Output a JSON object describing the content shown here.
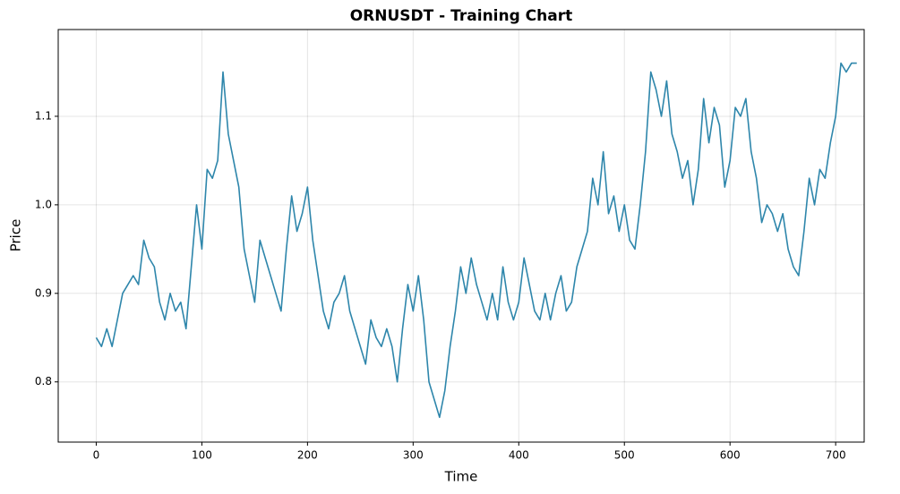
{
  "chart_data": {
    "type": "line",
    "title": "ORNUSDT - Training Chart",
    "x_label": "Time",
    "y_label": "Price",
    "x": [
      0,
      5,
      10,
      15,
      20,
      25,
      30,
      35,
      40,
      45,
      50,
      55,
      60,
      65,
      70,
      75,
      80,
      85,
      90,
      95,
      100,
      105,
      110,
      115,
      120,
      125,
      130,
      135,
      140,
      145,
      150,
      155,
      160,
      165,
      170,
      175,
      180,
      185,
      190,
      195,
      200,
      205,
      210,
      215,
      220,
      225,
      230,
      235,
      240,
      245,
      250,
      255,
      260,
      265,
      270,
      275,
      280,
      285,
      290,
      295,
      300,
      305,
      310,
      315,
      320,
      325,
      330,
      335,
      340,
      345,
      350,
      355,
      360,
      365,
      370,
      375,
      380,
      385,
      390,
      395,
      400,
      405,
      410,
      415,
      420,
      425,
      430,
      435,
      440,
      445,
      450,
      455,
      460,
      465,
      470,
      475,
      480,
      485,
      490,
      495,
      500,
      505,
      510,
      515,
      520,
      525,
      530,
      535,
      540,
      545,
      550,
      555,
      560,
      565,
      570,
      575,
      580,
      585,
      590,
      595,
      600,
      605,
      610,
      615,
      620,
      625,
      630,
      635,
      640,
      645,
      650,
      655,
      660,
      665,
      670,
      675,
      680,
      685,
      690,
      695,
      700,
      705,
      710,
      715,
      720
    ],
    "series": [
      {
        "name": "Price",
        "color": "#2e86ab",
        "values": [
          0.85,
          0.84,
          0.86,
          0.84,
          0.87,
          0.9,
          0.91,
          0.92,
          0.91,
          0.96,
          0.94,
          0.93,
          0.89,
          0.87,
          0.9,
          0.88,
          0.89,
          0.86,
          0.93,
          1.0,
          0.95,
          1.04,
          1.03,
          1.05,
          1.15,
          1.08,
          1.05,
          1.02,
          0.95,
          0.92,
          0.89,
          0.96,
          0.94,
          0.92,
          0.9,
          0.88,
          0.95,
          1.01,
          0.97,
          0.99,
          1.02,
          0.96,
          0.92,
          0.88,
          0.86,
          0.89,
          0.9,
          0.92,
          0.88,
          0.86,
          0.84,
          0.82,
          0.87,
          0.85,
          0.84,
          0.86,
          0.84,
          0.8,
          0.86,
          0.91,
          0.88,
          0.92,
          0.87,
          0.8,
          0.78,
          0.76,
          0.79,
          0.84,
          0.88,
          0.93,
          0.9,
          0.94,
          0.91,
          0.89,
          0.87,
          0.9,
          0.87,
          0.93,
          0.89,
          0.87,
          0.89,
          0.94,
          0.91,
          0.88,
          0.87,
          0.9,
          0.87,
          0.9,
          0.92,
          0.88,
          0.89,
          0.93,
          0.95,
          0.97,
          1.03,
          1.0,
          1.06,
          0.99,
          1.01,
          0.97,
          1.0,
          0.96,
          0.95,
          1.0,
          1.06,
          1.15,
          1.13,
          1.1,
          1.14,
          1.08,
          1.06,
          1.03,
          1.05,
          1.0,
          1.04,
          1.12,
          1.07,
          1.11,
          1.09,
          1.02,
          1.05,
          1.11,
          1.1,
          1.12,
          1.06,
          1.03,
          0.98,
          1.0,
          0.99,
          0.97,
          0.99,
          0.95,
          0.93,
          0.92,
          0.97,
          1.03,
          1.0,
          1.04,
          1.03,
          1.07,
          1.1,
          1.16,
          1.15,
          1.16,
          1.16
        ]
      }
    ],
    "xlim": [
      -36,
      727
    ],
    "xticks": [
      0,
      100,
      200,
      300,
      400,
      500,
      600,
      700
    ],
    "ylim": [
      0.732,
      1.198
    ],
    "yticks": [
      0.8,
      0.9,
      {
        "value": 1,
        "label": "1.0"
      },
      1.1
    ],
    "grid": true
  }
}
